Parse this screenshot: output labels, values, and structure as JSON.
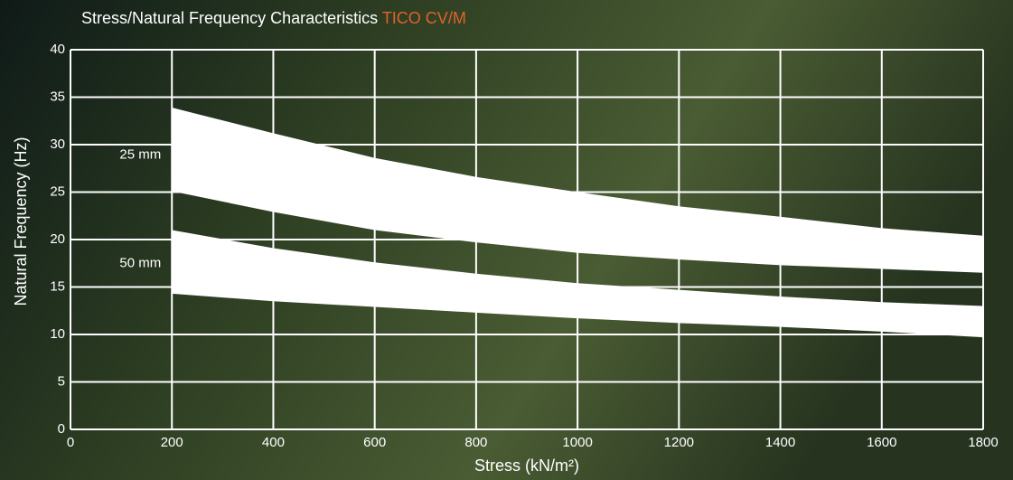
{
  "chart_data": {
    "type": "band",
    "title": "Stress/Natural Frequency Characteristics",
    "title_highlight": "TICO CV/M",
    "title_highlight_color": "#e0622a",
    "x_label": "Stress (kN/m²)",
    "y_label": "Natural Frequency (Hz)",
    "x": [
      200,
      400,
      600,
      800,
      1000,
      1200,
      1400,
      1600,
      1800
    ],
    "series": [
      {
        "name": "25 mm",
        "color": "#ffffff",
        "upper": [
          33.9,
          31.2,
          28.6,
          26.6,
          25.0,
          23.5,
          22.4,
          21.2,
          20.4
        ],
        "lower": [
          25.1,
          22.9,
          21.0,
          19.7,
          18.6,
          17.9,
          17.3,
          16.9,
          16.5
        ]
      },
      {
        "name": "50 mm",
        "color": "#ffffff",
        "upper": [
          21.0,
          19.1,
          17.6,
          16.4,
          15.4,
          14.7,
          14.0,
          13.4,
          13.0
        ],
        "lower": [
          14.3,
          13.5,
          12.9,
          12.3,
          11.7,
          11.2,
          10.8,
          10.3,
          9.7
        ]
      }
    ],
    "xlim": [
      0,
      1800
    ],
    "xticks": [
      0,
      200,
      400,
      600,
      800,
      1000,
      1200,
      1400,
      1600,
      1800
    ],
    "ylim": [
      0,
      40
    ],
    "yticks": [
      0,
      5,
      10,
      15,
      20,
      25,
      30,
      35,
      40
    ],
    "grid": true
  }
}
